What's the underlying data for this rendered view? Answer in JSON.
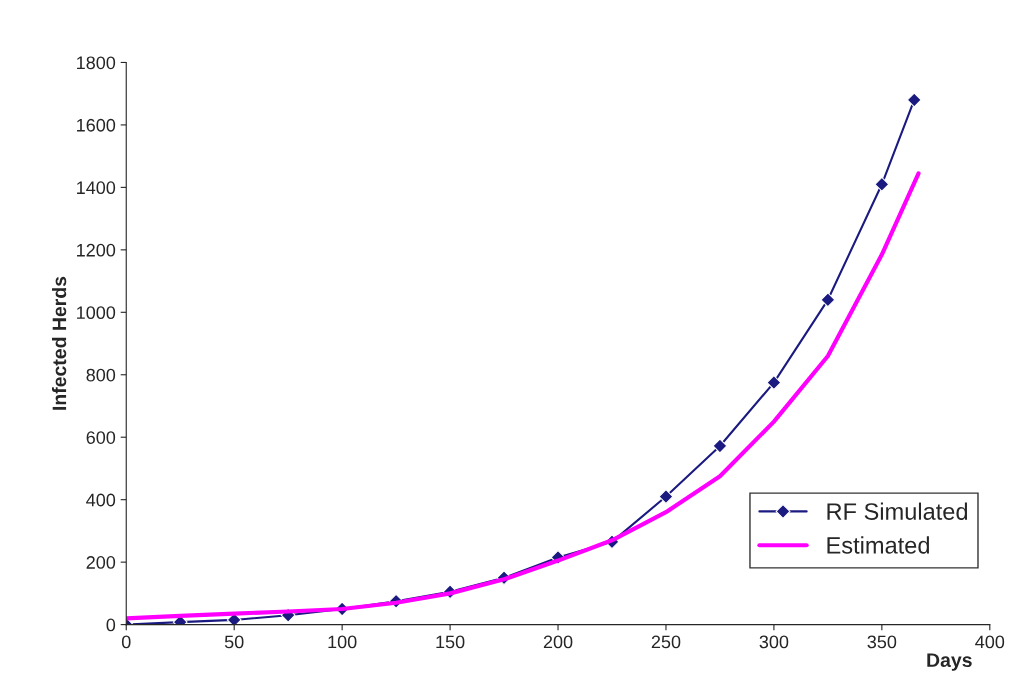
{
  "chart_data": {
    "type": "line",
    "xlabel": "Days",
    "ylabel": "Infected Herds",
    "xlim": [
      0,
      400
    ],
    "xticks": [
      0,
      50,
      100,
      150,
      200,
      250,
      300,
      350,
      400
    ],
    "ylim": [
      0,
      1800
    ],
    "yticks": [
      0,
      200,
      400,
      600,
      800,
      1000,
      1200,
      1400,
      1600,
      1800
    ],
    "grid": false,
    "legend": "bottom right",
    "series": [
      {
        "name": "RF Simulated",
        "color": "#1a1a80",
        "marker": "diamond",
        "x": [
          0,
          25,
          50,
          75,
          100,
          125,
          150,
          175,
          200,
          225,
          250,
          275,
          300,
          325,
          350,
          365
        ],
        "values": [
          0,
          8,
          15,
          30,
          50,
          75,
          105,
          150,
          215,
          265,
          410,
          572,
          775,
          1040,
          1410,
          1680
        ]
      },
      {
        "name": "Estimated",
        "color": "#ff00ff",
        "marker": "none",
        "x": [
          0,
          25,
          50,
          75,
          100,
          125,
          150,
          175,
          200,
          225,
          250,
          275,
          300,
          325,
          350,
          367
        ],
        "values": [
          20,
          28,
          35,
          42,
          50,
          70,
          100,
          145,
          205,
          270,
          360,
          475,
          650,
          860,
          1185,
          1445
        ]
      }
    ]
  }
}
